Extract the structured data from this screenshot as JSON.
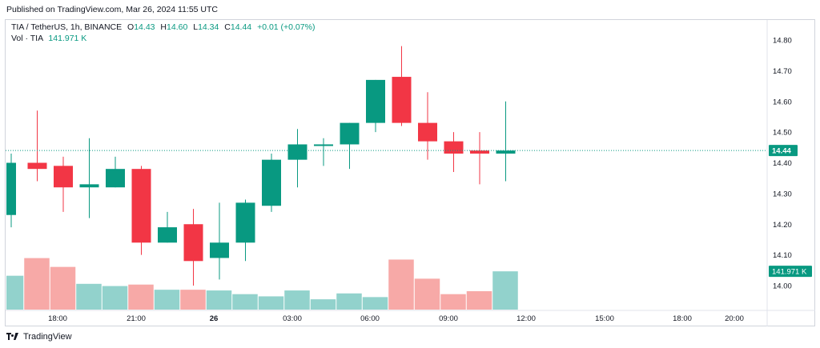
{
  "header": {
    "published": "Published on TradingView.com, Mar 26, 2024 11:55 UTC"
  },
  "legend": {
    "symbol": "TIA / TetherUS, 1h, BINANCE",
    "o_label": "O",
    "o": "14.43",
    "h_label": "H",
    "h": "14.60",
    "l_label": "L",
    "l": "14.34",
    "c_label": "C",
    "c": "14.44",
    "change": "+0.01 (+0.07%)",
    "vol_label": "Vol · TIA",
    "vol": "141.971 K"
  },
  "branding": {
    "name": "TradingView"
  },
  "colors": {
    "up": "#089981",
    "down": "#f23645",
    "vol_up": "#92d2cc",
    "vol_down": "#f7a9a7",
    "last_price_line": "#089981"
  },
  "chart_data": {
    "type": "candlestick",
    "symbol": "TIA / TetherUS",
    "interval": "1h",
    "exchange": "BINANCE",
    "price_axis": {
      "ticks": [
        "14.80",
        "14.70",
        "14.60",
        "14.50",
        "14.40",
        "14.30",
        "14.20",
        "14.10",
        "14.00"
      ],
      "tick_values": [
        14.8,
        14.7,
        14.6,
        14.5,
        14.4,
        14.3,
        14.2,
        14.1,
        14.0
      ]
    },
    "last_price_label": "14.44",
    "volume_label": "141.971 K",
    "time_axis": {
      "labels": [
        "18:00",
        "21:00",
        "26",
        "03:00",
        "06:00",
        "09:00",
        "12:00",
        "15:00",
        "18:00",
        "20:00"
      ],
      "bold": [
        false,
        false,
        true,
        false,
        false,
        false,
        false,
        false,
        false,
        false
      ]
    },
    "candles": [
      {
        "o": 14.23,
        "h": 14.43,
        "l": 14.19,
        "c": 14.4,
        "v": 0.46
      },
      {
        "o": 14.4,
        "h": 14.57,
        "l": 14.34,
        "c": 14.38,
        "v": 0.7
      },
      {
        "o": 14.39,
        "h": 14.42,
        "l": 14.24,
        "c": 14.32,
        "v": 0.58
      },
      {
        "o": 14.32,
        "h": 14.48,
        "l": 14.22,
        "c": 14.33,
        "v": 0.35
      },
      {
        "o": 14.32,
        "h": 14.42,
        "l": 14.32,
        "c": 14.38,
        "v": 0.32
      },
      {
        "o": 14.38,
        "h": 14.39,
        "l": 14.1,
        "c": 14.14,
        "v": 0.34
      },
      {
        "o": 14.14,
        "h": 14.24,
        "l": 14.14,
        "c": 14.19,
        "v": 0.27
      },
      {
        "o": 14.2,
        "h": 14.25,
        "l": 14.0,
        "c": 14.08,
        "v": 0.27
      },
      {
        "o": 14.09,
        "h": 14.27,
        "l": 14.02,
        "c": 14.14,
        "v": 0.26
      },
      {
        "o": 14.14,
        "h": 14.28,
        "l": 14.08,
        "c": 14.27,
        "v": 0.21
      },
      {
        "o": 14.26,
        "h": 14.43,
        "l": 14.24,
        "c": 14.41,
        "v": 0.18
      },
      {
        "o": 14.41,
        "h": 14.51,
        "l": 14.32,
        "c": 14.46,
        "v": 0.26
      },
      {
        "o": 14.46,
        "h": 14.48,
        "l": 14.39,
        "c": 14.46,
        "v": 0.14
      },
      {
        "o": 14.46,
        "h": 14.53,
        "l": 14.38,
        "c": 14.53,
        "v": 0.22
      },
      {
        "o": 14.53,
        "h": 14.67,
        "l": 14.5,
        "c": 14.67,
        "v": 0.17
      },
      {
        "o": 14.68,
        "h": 14.78,
        "l": 14.52,
        "c": 14.53,
        "v": 0.68
      },
      {
        "o": 14.53,
        "h": 14.63,
        "l": 14.41,
        "c": 14.47,
        "v": 0.42
      },
      {
        "o": 14.47,
        "h": 14.5,
        "l": 14.37,
        "c": 14.43,
        "v": 0.21
      },
      {
        "o": 14.44,
        "h": 14.5,
        "l": 14.33,
        "c": 14.43,
        "v": 0.25
      },
      {
        "o": 14.43,
        "h": 14.6,
        "l": 14.34,
        "c": 14.44,
        "v": 0.52
      }
    ]
  }
}
